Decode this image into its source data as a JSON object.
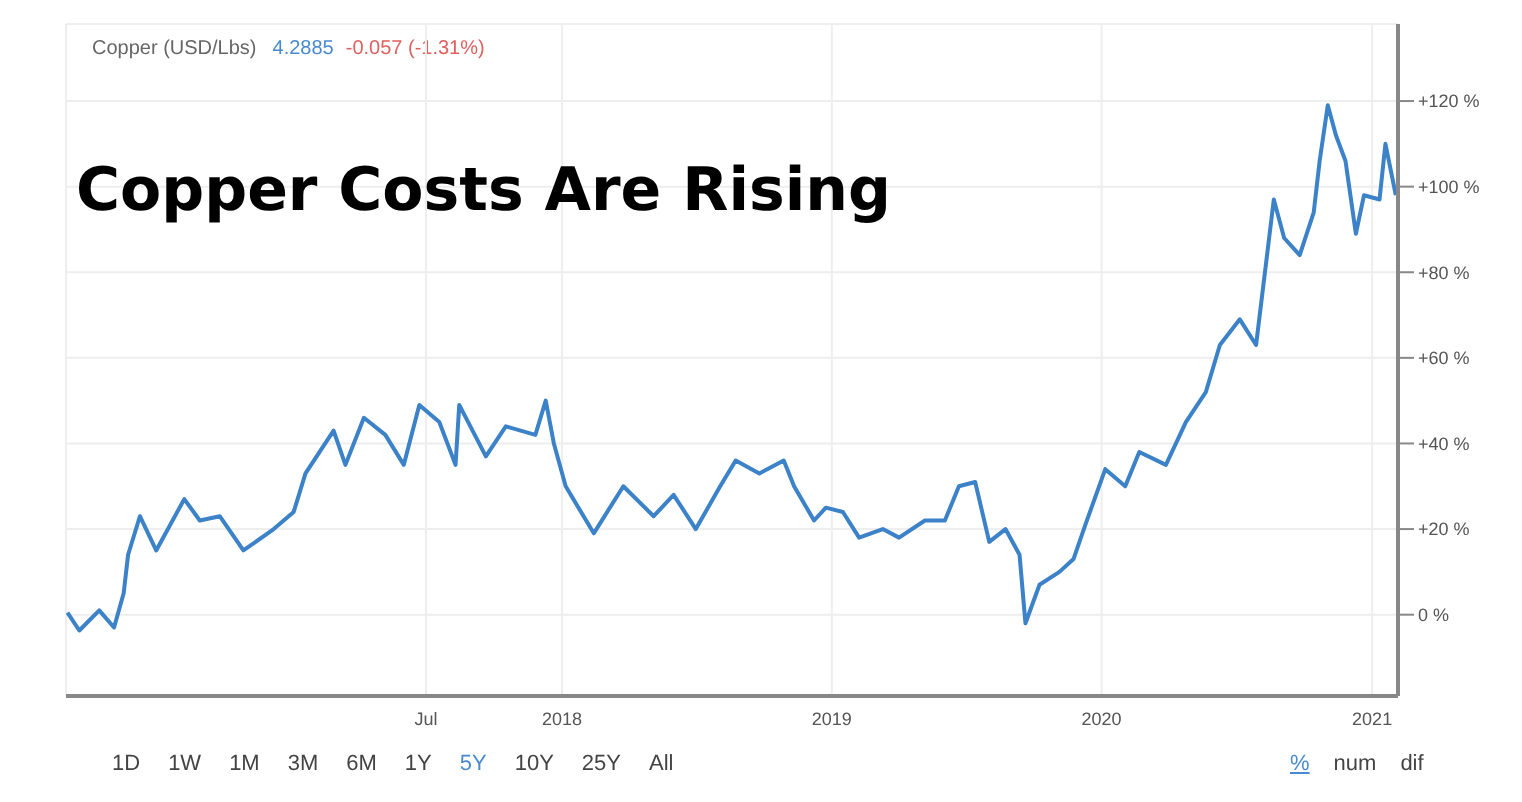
{
  "chart_data": {
    "type": "line",
    "title": "Copper Costs Are Rising",
    "subtitle": "Copper (USD/Lbs)",
    "annotations": [
      "4.2885",
      "-0.057 (-1.31%)",
      "1D",
      "1W",
      "1M",
      "3M",
      "6M",
      "1Y",
      "5Y",
      "10Y",
      "25Y",
      "All",
      "%",
      "num",
      "dif"
    ],
    "series": [
      {
        "color": "#3b82c8",
        "x": [
          "2016-03-03",
          "2016-03-19",
          "2016-04-15",
          "2016-05-05",
          "2016-05-18",
          "2016-05-24",
          "2016-06-09",
          "2016-07-01",
          "2016-08-08",
          "2016-08-29",
          "2016-09-25",
          "2016-10-27",
          "2016-12-07",
          "2017-01-03",
          "2017-01-19",
          "2017-02-26",
          "2017-03-14",
          "2017-04-08",
          "2017-05-07",
          "2017-06-01",
          "2017-06-22",
          "2017-07-19",
          "2017-08-10",
          "2017-08-15",
          "2017-09-20",
          "2017-10-17",
          "2017-11-26",
          "2017-12-10",
          "2017-12-21",
          "2018-01-06",
          "2018-02-13",
          "2018-03-25",
          "2018-05-05",
          "2018-06-01",
          "2018-07-01",
          "2018-08-03",
          "2018-08-24",
          "2018-09-25",
          "2018-10-28",
          "2018-11-11",
          "2018-12-08",
          "2018-12-24",
          "2019-01-16",
          "2019-02-07",
          "2019-03-11",
          "2019-04-02",
          "2019-05-07",
          "2019-06-03",
          "2019-06-22",
          "2019-07-14",
          "2019-08-02",
          "2019-08-24",
          "2019-09-12",
          "2019-09-20",
          "2019-10-09",
          "2019-11-05",
          "2019-11-24",
          "2019-12-10",
          "2020-01-06",
          "2020-02-02",
          "2020-02-21",
          "2020-03-28",
          "2020-04-24",
          "2020-05-21",
          "2020-06-09",
          "2020-07-06",
          "2020-07-28",
          "2020-08-21",
          "2020-09-04",
          "2020-09-25",
          "2020-10-14",
          "2020-10-22",
          "2020-11-02",
          "2020-11-13",
          "2020-11-26",
          "2020-12-10",
          "2020-12-21",
          "2021-01-11",
          "2021-01-19",
          "2021-02-02"
        ],
        "values": [
          0.5,
          -3.7,
          1,
          -3,
          5,
          14,
          23,
          15,
          27,
          22,
          23,
          15,
          20,
          24,
          33,
          43,
          35,
          46,
          42,
          35,
          49,
          45,
          35,
          49,
          37,
          44,
          42,
          50,
          40,
          30,
          19,
          30,
          23,
          28,
          20,
          30,
          36,
          33,
          36,
          30,
          22,
          25,
          24,
          18,
          20,
          18,
          22,
          22,
          30,
          31,
          17,
          20,
          14,
          -2,
          7,
          10,
          13,
          21,
          34,
          30,
          38,
          35,
          45,
          52,
          63,
          69,
          63,
          97,
          88,
          84,
          94,
          106,
          119,
          112,
          106,
          89,
          98,
          97,
          110,
          98
        ]
      }
    ],
    "xlim": [
      "2016-03-01",
      "2021-02-05"
    ],
    "xticks": [
      {
        "value": "2017-07",
        "label": "Jul"
      },
      {
        "value": "2018",
        "label": "2018"
      },
      {
        "value": "2019",
        "label": "2019"
      },
      {
        "value": "2020",
        "label": "2020"
      },
      {
        "value": "2021",
        "label": "2021"
      }
    ],
    "ylim": [
      -19,
      138
    ],
    "yticks": [
      {
        "value": 0,
        "label": "0 %"
      },
      {
        "value": 20,
        "label": "+20 %"
      },
      {
        "value": 40,
        "label": "+40 %"
      },
      {
        "value": 60,
        "label": "+60 %"
      },
      {
        "value": 80,
        "label": "+80 %"
      },
      {
        "value": 100,
        "label": "+100 %"
      },
      {
        "value": 120,
        "label": "+120 %"
      }
    ],
    "grid": true,
    "legend": false,
    "marker": "none",
    "line_style": "solid"
  }
}
